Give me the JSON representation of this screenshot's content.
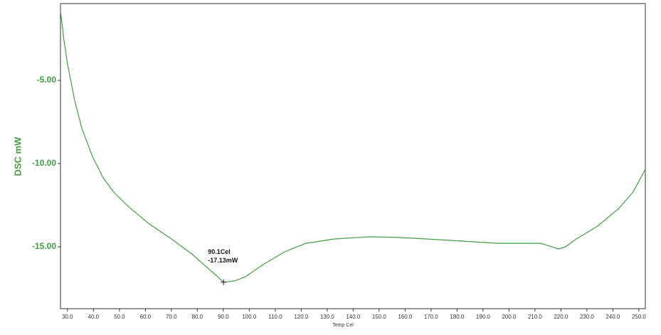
{
  "chart_data": {
    "type": "line",
    "xlabel": "Temp Cel",
    "ylabel": "DSC mW",
    "x": [
      27.3,
      28.6,
      30.0,
      32.7,
      35.5,
      39.6,
      43.7,
      47.8,
      53.3,
      61.5,
      69.7,
      77.9,
      83.4,
      87.5,
      90.1,
      94.4,
      98.5,
      105.3,
      113.6,
      121.8,
      132.7,
      146.4,
      157.4,
      168.4,
      182.1,
      195.8,
      209.5,
      212.2,
      214.9,
      219.0,
      221.8,
      225.9,
      234.1,
      242.3,
      247.8,
      252.5
    ],
    "series": [
      {
        "name": "DSC",
        "color": "#3f9f3f",
        "values": [
          -0.81,
          -2.52,
          -4.02,
          -6.15,
          -7.86,
          -9.57,
          -10.85,
          -11.71,
          -12.56,
          -13.63,
          -14.49,
          -15.43,
          -16.2,
          -16.75,
          -17.13,
          -17.05,
          -16.8,
          -16.07,
          -15.3,
          -14.79,
          -14.53,
          -14.4,
          -14.44,
          -14.53,
          -14.66,
          -14.79,
          -14.79,
          -14.79,
          -14.92,
          -15.13,
          -15.0,
          -14.53,
          -13.76,
          -12.69,
          -11.71,
          -10.34
        ]
      }
    ],
    "xlim": [
      27.3,
      252.5
    ],
    "ylim": [
      -18.72,
      -0.38
    ],
    "xticks": [
      {
        "value": 30,
        "label": "30.0"
      },
      {
        "value": 40,
        "label": "40.0"
      },
      {
        "value": 50,
        "label": "50.0"
      },
      {
        "value": 60,
        "label": "60.0"
      },
      {
        "value": 70,
        "label": "70.0"
      },
      {
        "value": 80,
        "label": "80.0"
      },
      {
        "value": 90,
        "label": "90.0"
      },
      {
        "value": 100,
        "label": "100.0"
      },
      {
        "value": 110,
        "label": "110.0"
      },
      {
        "value": 120,
        "label": "120.0"
      },
      {
        "value": 130,
        "label": "130.0"
      },
      {
        "value": 140,
        "label": "140.0"
      },
      {
        "value": 150,
        "label": "150.0"
      },
      {
        "value": 160,
        "label": "160.0"
      },
      {
        "value": 170,
        "label": "170.0"
      },
      {
        "value": 180,
        "label": "180.0"
      },
      {
        "value": 190,
        "label": "190.0"
      },
      {
        "value": 200,
        "label": "200.0"
      },
      {
        "value": 210,
        "label": "210.0"
      },
      {
        "value": 220,
        "label": "220.0"
      },
      {
        "value": 230,
        "label": "230.0"
      },
      {
        "value": 240,
        "label": "240.0"
      },
      {
        "value": 250,
        "label": "250.0"
      }
    ],
    "yticks": [
      {
        "value": -5,
        "label": "-5.00"
      },
      {
        "value": -10,
        "label": "-10.00"
      },
      {
        "value": -15,
        "label": "-15.00"
      }
    ],
    "annotations": [
      {
        "x": 90.1,
        "y": -17.13,
        "text": [
          "90.1Cel",
          "-17.13mW"
        ]
      }
    ]
  }
}
